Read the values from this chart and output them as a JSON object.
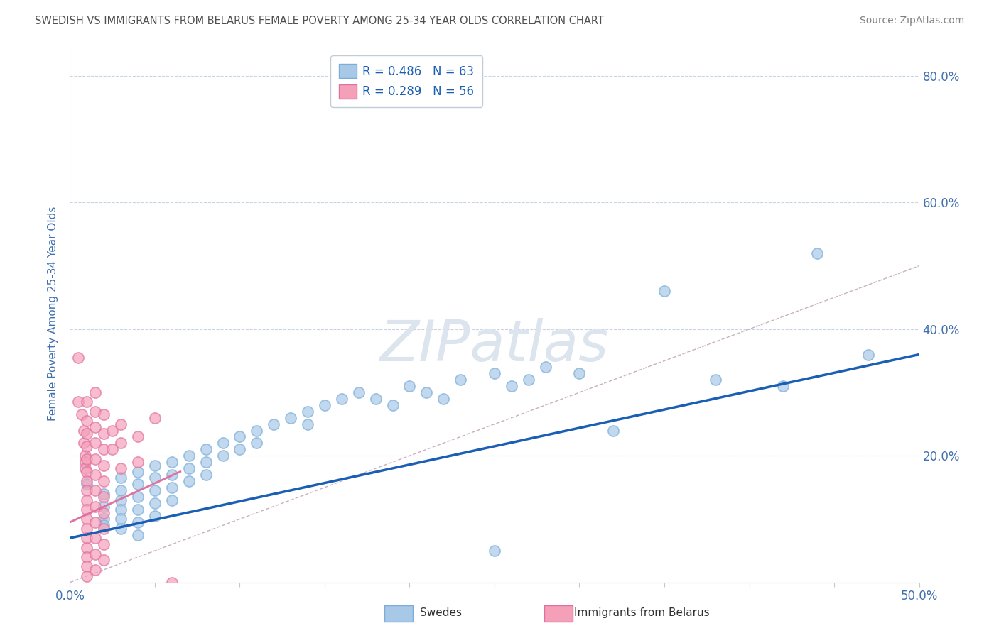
{
  "title": "SWEDISH VS IMMIGRANTS FROM BELARUS FEMALE POVERTY AMONG 25-34 YEAR OLDS CORRELATION CHART",
  "source": "Source: ZipAtlas.com",
  "ylabel": "Female Poverty Among 25-34 Year Olds",
  "xlim": [
    0.0,
    0.5
  ],
  "ylim": [
    0.0,
    0.85
  ],
  "xticks": [
    0.0,
    0.05,
    0.1,
    0.15,
    0.2,
    0.25,
    0.3,
    0.35,
    0.4,
    0.45,
    0.5
  ],
  "yticks": [
    0.0,
    0.2,
    0.4,
    0.6,
    0.8
  ],
  "ytick_labels": [
    "",
    "20.0%",
    "40.0%",
    "60.0%",
    "80.0%"
  ],
  "xtick_left_label": "0.0%",
  "xtick_right_label": "50.0%",
  "r_swedish": 0.486,
  "n_swedish": 63,
  "r_belarus": 0.289,
  "n_belarus": 56,
  "swedish_color": "#a8c8e8",
  "swedish_edge": "#7aaed8",
  "belarus_color": "#f4a0b8",
  "belarus_edge": "#e070a0",
  "line_color": "#1a5fb4",
  "diagonal_color": "#c8b0c0",
  "title_color": "#505050",
  "axis_label_color": "#4070b0",
  "tick_color": "#4070b0",
  "grid_color": "#c8d4e4",
  "watermark_color": "#dce4ee",
  "bottom_legend_label_color": "#303030",
  "swedish_scatter": [
    [
      0.01,
      0.155
    ],
    [
      0.02,
      0.14
    ],
    [
      0.02,
      0.12
    ],
    [
      0.02,
      0.1
    ],
    [
      0.02,
      0.09
    ],
    [
      0.03,
      0.165
    ],
    [
      0.03,
      0.145
    ],
    [
      0.03,
      0.13
    ],
    [
      0.03,
      0.115
    ],
    [
      0.03,
      0.1
    ],
    [
      0.03,
      0.085
    ],
    [
      0.04,
      0.175
    ],
    [
      0.04,
      0.155
    ],
    [
      0.04,
      0.135
    ],
    [
      0.04,
      0.115
    ],
    [
      0.04,
      0.095
    ],
    [
      0.04,
      0.075
    ],
    [
      0.05,
      0.185
    ],
    [
      0.05,
      0.165
    ],
    [
      0.05,
      0.145
    ],
    [
      0.05,
      0.125
    ],
    [
      0.05,
      0.105
    ],
    [
      0.06,
      0.19
    ],
    [
      0.06,
      0.17
    ],
    [
      0.06,
      0.15
    ],
    [
      0.06,
      0.13
    ],
    [
      0.07,
      0.2
    ],
    [
      0.07,
      0.18
    ],
    [
      0.07,
      0.16
    ],
    [
      0.08,
      0.21
    ],
    [
      0.08,
      0.19
    ],
    [
      0.08,
      0.17
    ],
    [
      0.09,
      0.22
    ],
    [
      0.09,
      0.2
    ],
    [
      0.1,
      0.23
    ],
    [
      0.1,
      0.21
    ],
    [
      0.11,
      0.24
    ],
    [
      0.11,
      0.22
    ],
    [
      0.12,
      0.25
    ],
    [
      0.13,
      0.26
    ],
    [
      0.14,
      0.27
    ],
    [
      0.14,
      0.25
    ],
    [
      0.15,
      0.28
    ],
    [
      0.16,
      0.29
    ],
    [
      0.17,
      0.3
    ],
    [
      0.18,
      0.29
    ],
    [
      0.19,
      0.28
    ],
    [
      0.2,
      0.31
    ],
    [
      0.21,
      0.3
    ],
    [
      0.22,
      0.29
    ],
    [
      0.23,
      0.32
    ],
    [
      0.25,
      0.33
    ],
    [
      0.26,
      0.31
    ],
    [
      0.27,
      0.32
    ],
    [
      0.28,
      0.34
    ],
    [
      0.3,
      0.33
    ],
    [
      0.32,
      0.24
    ],
    [
      0.35,
      0.46
    ],
    [
      0.38,
      0.32
    ],
    [
      0.42,
      0.31
    ],
    [
      0.44,
      0.52
    ],
    [
      0.47,
      0.36
    ],
    [
      0.25,
      0.05
    ]
  ],
  "belarus_scatter": [
    [
      0.005,
      0.355
    ],
    [
      0.005,
      0.285
    ],
    [
      0.007,
      0.265
    ],
    [
      0.008,
      0.24
    ],
    [
      0.008,
      0.22
    ],
    [
      0.009,
      0.2
    ],
    [
      0.009,
      0.19
    ],
    [
      0.009,
      0.18
    ],
    [
      0.01,
      0.285
    ],
    [
      0.01,
      0.255
    ],
    [
      0.01,
      0.235
    ],
    [
      0.01,
      0.215
    ],
    [
      0.01,
      0.195
    ],
    [
      0.01,
      0.175
    ],
    [
      0.01,
      0.16
    ],
    [
      0.01,
      0.145
    ],
    [
      0.01,
      0.13
    ],
    [
      0.01,
      0.115
    ],
    [
      0.01,
      0.1
    ],
    [
      0.01,
      0.085
    ],
    [
      0.01,
      0.07
    ],
    [
      0.01,
      0.055
    ],
    [
      0.01,
      0.04
    ],
    [
      0.01,
      0.025
    ],
    [
      0.01,
      0.01
    ],
    [
      0.015,
      0.3
    ],
    [
      0.015,
      0.27
    ],
    [
      0.015,
      0.245
    ],
    [
      0.015,
      0.22
    ],
    [
      0.015,
      0.195
    ],
    [
      0.015,
      0.17
    ],
    [
      0.015,
      0.145
    ],
    [
      0.015,
      0.12
    ],
    [
      0.015,
      0.095
    ],
    [
      0.015,
      0.07
    ],
    [
      0.015,
      0.045
    ],
    [
      0.015,
      0.02
    ],
    [
      0.02,
      0.265
    ],
    [
      0.02,
      0.235
    ],
    [
      0.02,
      0.21
    ],
    [
      0.02,
      0.185
    ],
    [
      0.02,
      0.16
    ],
    [
      0.02,
      0.135
    ],
    [
      0.02,
      0.11
    ],
    [
      0.02,
      0.085
    ],
    [
      0.02,
      0.06
    ],
    [
      0.02,
      0.035
    ],
    [
      0.025,
      0.24
    ],
    [
      0.025,
      0.21
    ],
    [
      0.03,
      0.25
    ],
    [
      0.03,
      0.22
    ],
    [
      0.03,
      0.18
    ],
    [
      0.04,
      0.23
    ],
    [
      0.04,
      0.19
    ],
    [
      0.05,
      0.26
    ],
    [
      0.06,
      0.0
    ]
  ],
  "reg_line_swedish": [
    [
      0.0,
      0.07
    ],
    [
      0.5,
      0.36
    ]
  ],
  "reg_line_belarus": [
    [
      0.0,
      0.095
    ],
    [
      0.065,
      0.175
    ]
  ]
}
